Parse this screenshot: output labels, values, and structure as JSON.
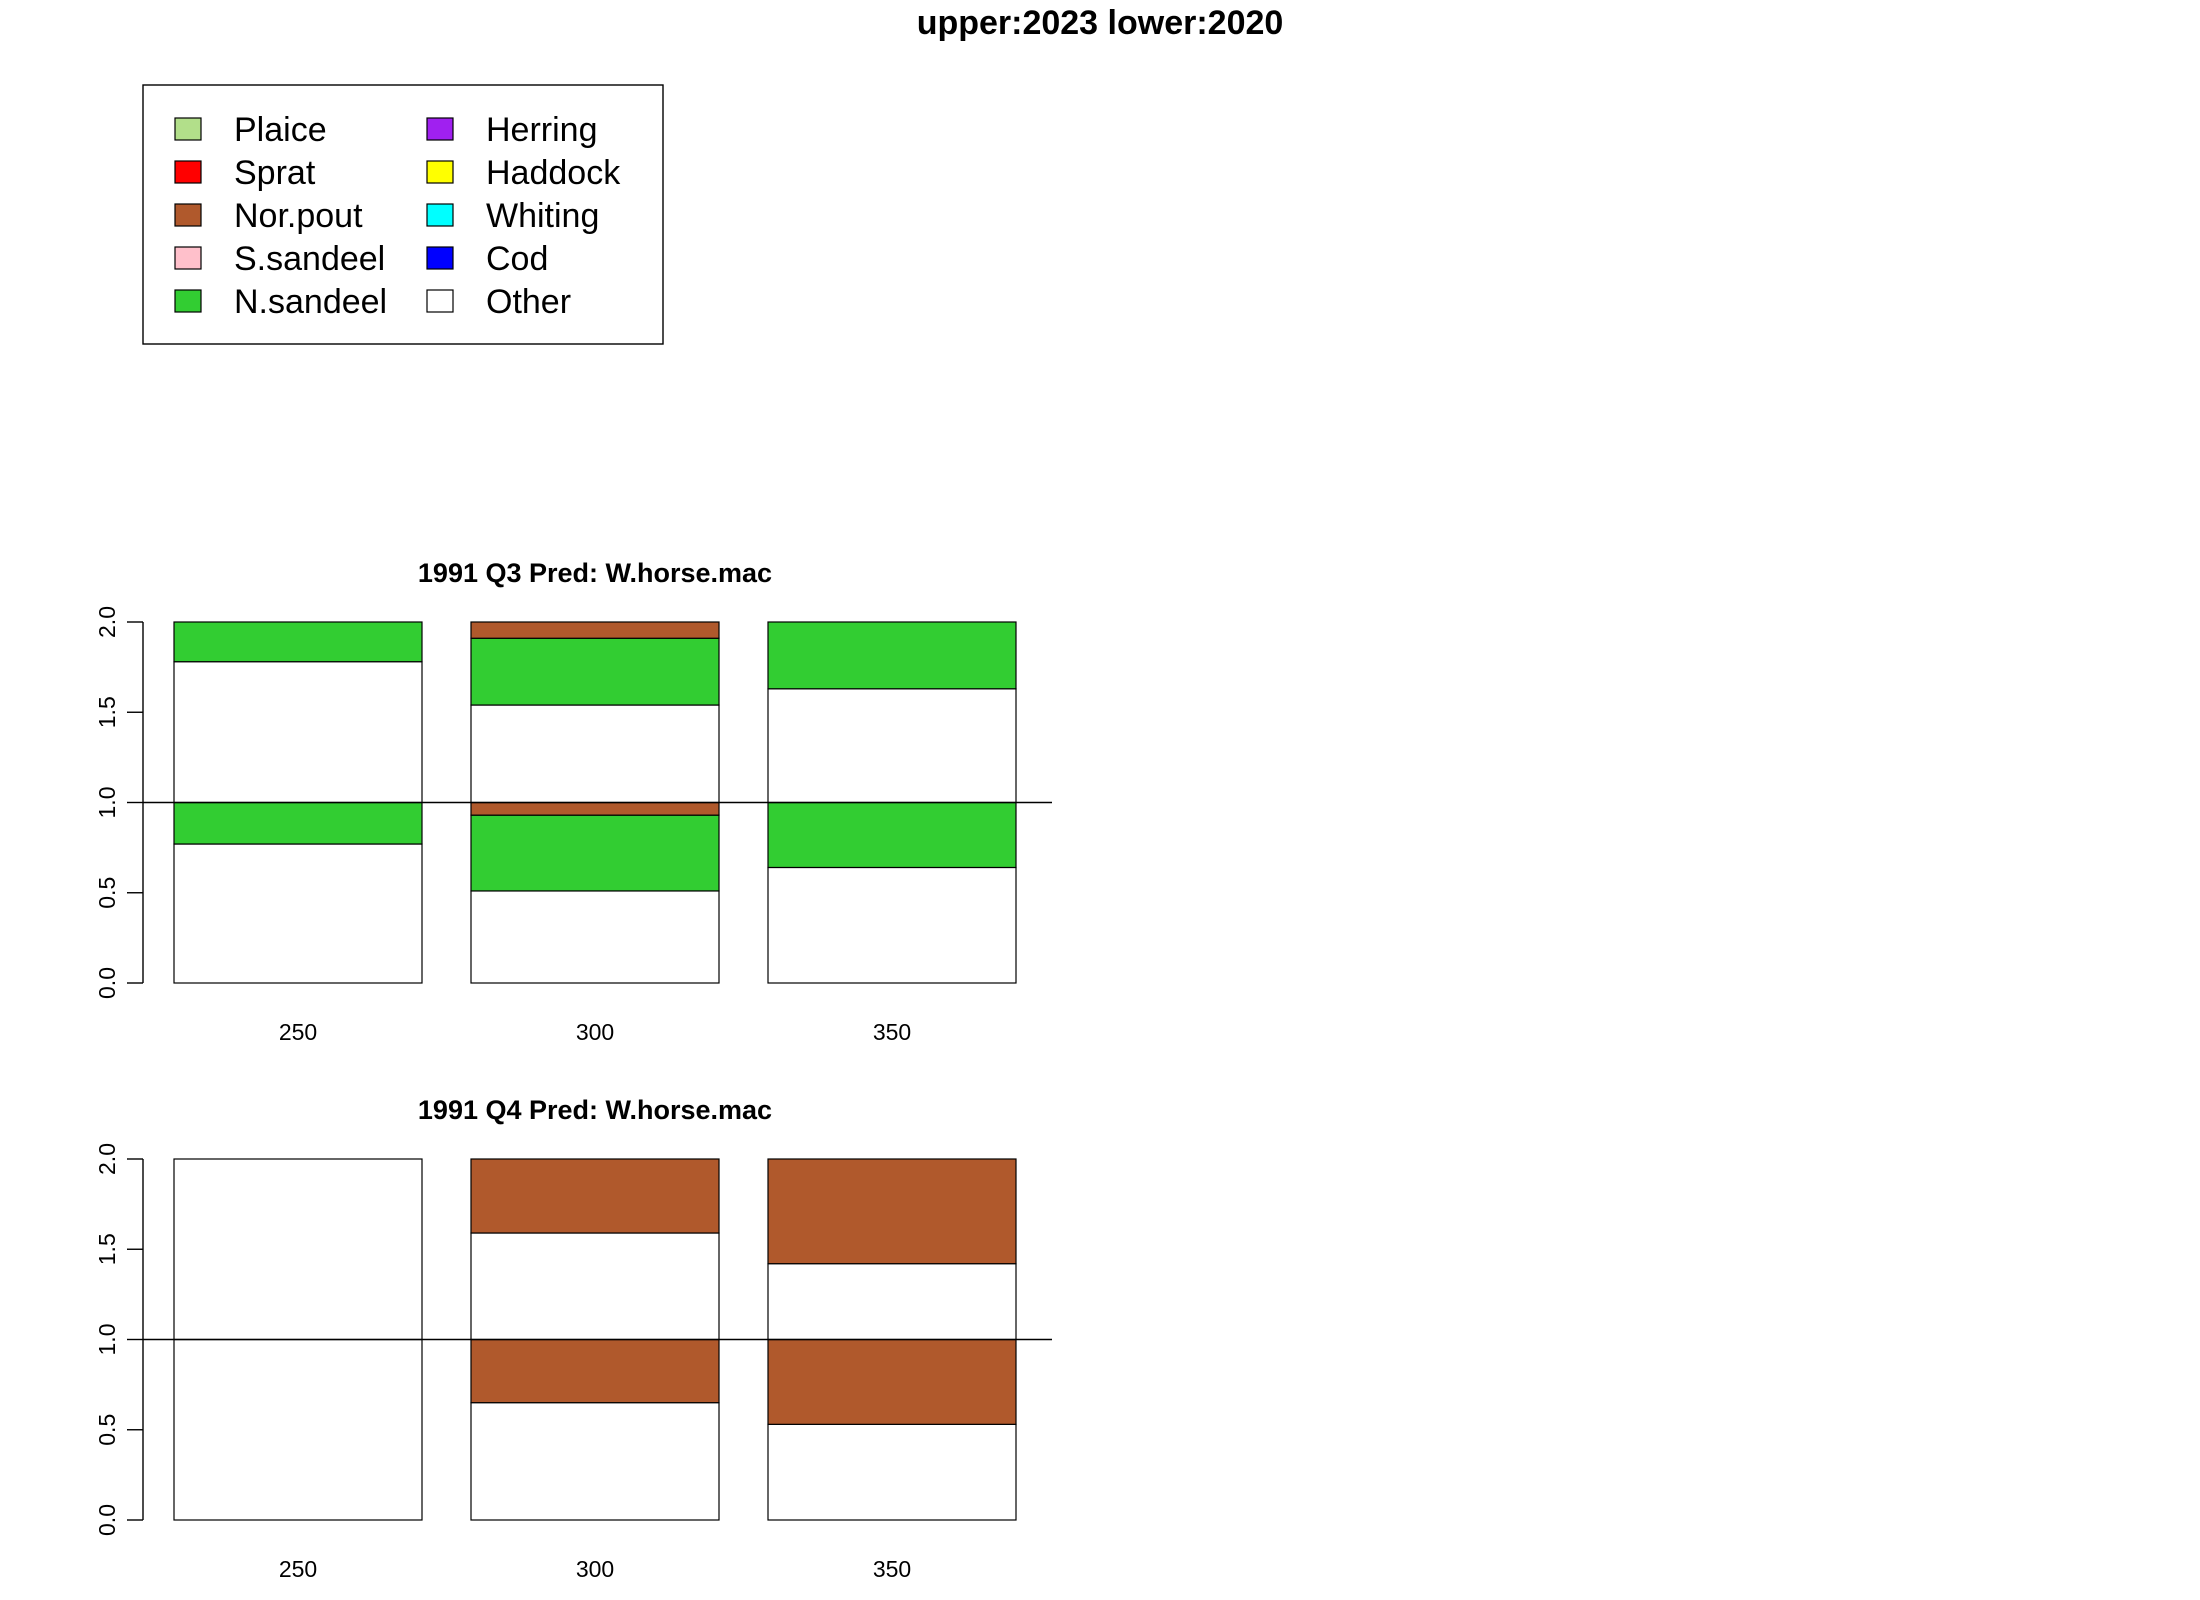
{
  "page_title": "upper:2023  lower:2020",
  "legend": {
    "items": [
      {
        "label": "Plaice",
        "color": "#b2df8a"
      },
      {
        "label": "Sprat",
        "color": "#ff0000"
      },
      {
        "label": "Nor.pout",
        "color": "#b0592c"
      },
      {
        "label": "S.sandeel",
        "color": "#ffc0cb"
      },
      {
        "label": "N.sandeel",
        "color": "#32cd32"
      },
      {
        "label": "Herring",
        "color": "#a020f0"
      },
      {
        "label": "Haddock",
        "color": "#ffff00"
      },
      {
        "label": "Whiting",
        "color": "#00ffff"
      },
      {
        "label": "Cod",
        "color": "#0000ff"
      },
      {
        "label": "Other",
        "color": "#ffffff"
      }
    ]
  },
  "chart_data": [
    {
      "type": "bar",
      "stacked": true,
      "title": "1991 Q3  Pred: W.horse.mac",
      "categories": [
        "250",
        "300",
        "350"
      ],
      "ylim": [
        0,
        2
      ],
      "yticks": [
        "0.0",
        "0.5",
        "1.0",
        "1.5",
        "2.0"
      ],
      "reference_line": 1.0,
      "upper": {
        "label": "2023",
        "series": [
          {
            "name": "Other",
            "values": [
              0.78,
              0.54,
              0.63
            ]
          },
          {
            "name": "N.sandeel",
            "values": [
              0.22,
              0.37,
              0.37
            ]
          },
          {
            "name": "Nor.pout",
            "values": [
              0.0,
              0.09,
              0.0
            ]
          }
        ]
      },
      "lower": {
        "label": "2020",
        "series": [
          {
            "name": "Other",
            "values": [
              0.77,
              0.51,
              0.64
            ]
          },
          {
            "name": "N.sandeel",
            "values": [
              0.23,
              0.42,
              0.36
            ]
          },
          {
            "name": "Nor.pout",
            "values": [
              0.0,
              0.07,
              0.0
            ]
          }
        ]
      }
    },
    {
      "type": "bar",
      "stacked": true,
      "title": "1991 Q4  Pred: W.horse.mac",
      "categories": [
        "250",
        "300",
        "350"
      ],
      "ylim": [
        0,
        2
      ],
      "yticks": [
        "0.0",
        "0.5",
        "1.0",
        "1.5",
        "2.0"
      ],
      "reference_line": 1.0,
      "upper": {
        "label": "2023",
        "series": [
          {
            "name": "Other",
            "values": [
              1.0,
              0.59,
              0.42
            ]
          },
          {
            "name": "Nor.pout",
            "values": [
              0.0,
              0.41,
              0.58
            ]
          }
        ]
      },
      "lower": {
        "label": "2020",
        "series": [
          {
            "name": "Other",
            "values": [
              1.0,
              0.65,
              0.53
            ]
          },
          {
            "name": "Nor.pout",
            "values": [
              0.0,
              0.35,
              0.47
            ]
          }
        ]
      }
    }
  ]
}
